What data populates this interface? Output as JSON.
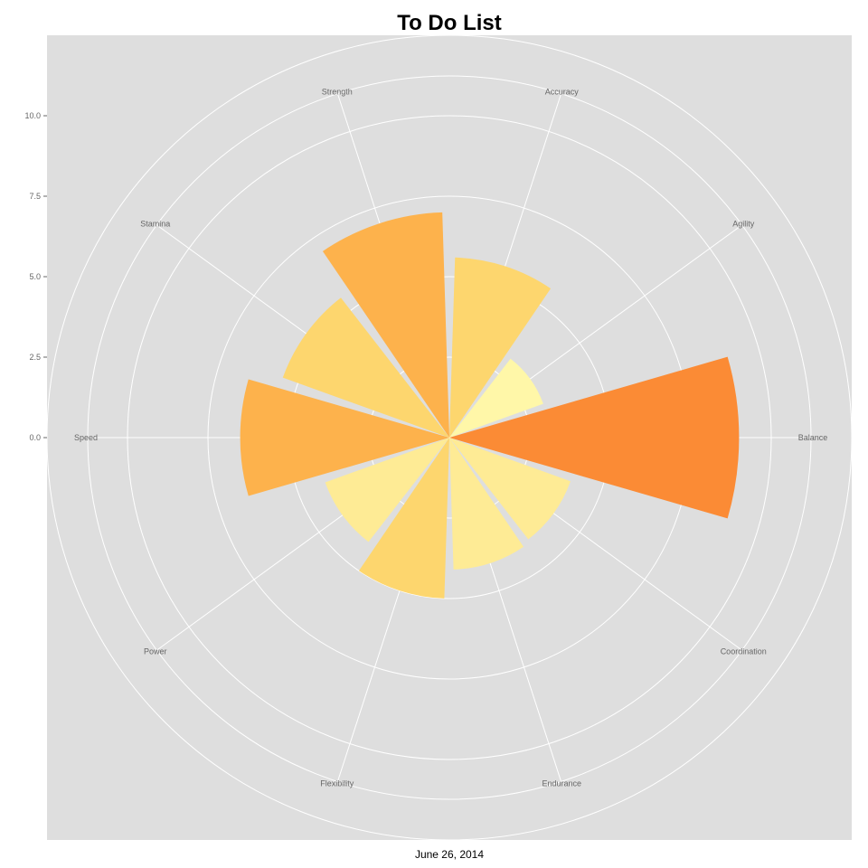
{
  "chart_data": {
    "type": "polar-bar",
    "title": "To Do List",
    "caption": "June 26, 2014",
    "categories": [
      "Balance",
      "Agility",
      "Accuracy",
      "Strength",
      "Stamina",
      "Speed",
      "Power",
      "Flexibility",
      "Endurance",
      "Coordination"
    ],
    "values": [
      6.5,
      0.6,
      3.1,
      4.5,
      3.0,
      4.0,
      1.6,
      2.5,
      1.6,
      1.5
    ],
    "colors": [
      "#fb8b35",
      "#fff7a8",
      "#fdd66e",
      "#fdb24c",
      "#fdd66e",
      "#fdb24c",
      "#feeb95",
      "#fdd66e",
      "#feeb95",
      "#feeb95"
    ],
    "y_ticks": [
      "0.0",
      "2.5",
      "5.0",
      "7.5",
      "10.0"
    ],
    "y_tick_values": [
      0,
      2.5,
      5,
      7.5,
      10
    ],
    "ylim": [
      -2.5,
      10.5
    ],
    "grid": true,
    "background": "#dedede"
  }
}
